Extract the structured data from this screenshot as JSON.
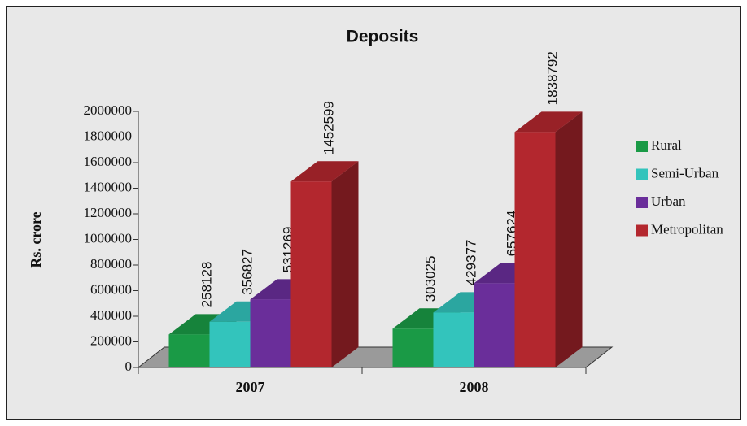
{
  "chart_data": {
    "type": "bar3d",
    "title": "Deposits",
    "ylabel": "Rs. crore",
    "categories": [
      "2007",
      "2008"
    ],
    "series": [
      {
        "name": "Rural",
        "color": "#1a9a46",
        "values": [
          258128,
          303025
        ]
      },
      {
        "name": "Semi-Urban",
        "color": "#33c4bc",
        "values": [
          356827,
          429377
        ]
      },
      {
        "name": "Urban",
        "color": "#6a2e9a",
        "values": [
          531269,
          657624
        ]
      },
      {
        "name": "Metropolitan",
        "color": "#b3272e",
        "values": [
          1452599,
          1838792
        ]
      }
    ],
    "ylim": [
      0,
      2000000
    ],
    "yticks": [
      0,
      200000,
      400000,
      600000,
      800000,
      1000000,
      1200000,
      1400000,
      1600000,
      1800000,
      2000000
    ],
    "legend": "right"
  }
}
